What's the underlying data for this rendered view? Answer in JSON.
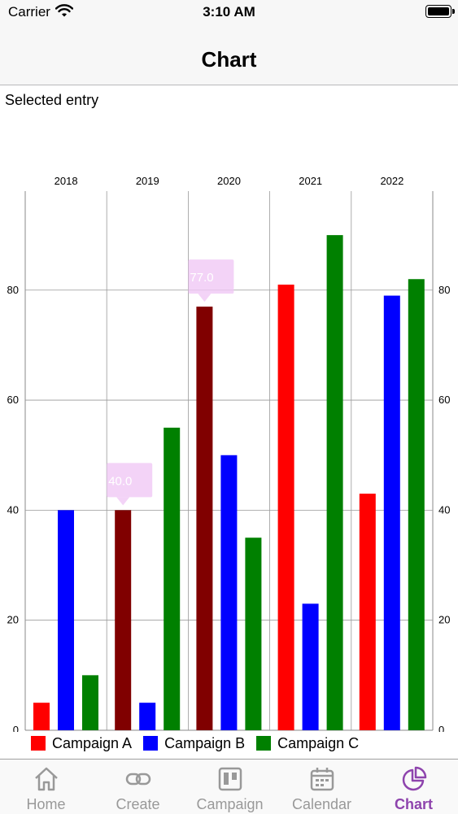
{
  "status_bar": {
    "carrier": "Carrier",
    "time": "3:10 AM"
  },
  "nav": {
    "title": "Chart"
  },
  "selected_entry_label": "Selected entry",
  "chart_data": {
    "type": "bar",
    "categories": [
      "2018",
      "2019",
      "2020",
      "2021",
      "2022"
    ],
    "series": [
      {
        "name": "Campaign A",
        "color": "#ff0000",
        "values": [
          5,
          40,
          77,
          81,
          43
        ]
      },
      {
        "name": "Campaign B",
        "color": "#0000ff",
        "values": [
          40,
          5,
          50,
          23,
          79
        ]
      },
      {
        "name": "Campaign C",
        "color": "#008000",
        "values": [
          10,
          55,
          35,
          90,
          82
        ]
      }
    ],
    "highlight_color": "#800000",
    "highlighted": [
      {
        "category": "2019",
        "series": "Campaign A",
        "label": "40.0"
      },
      {
        "category": "2020",
        "series": "Campaign A",
        "label": "77.0"
      }
    ],
    "y_ticks": [
      0,
      20,
      40,
      60,
      80
    ],
    "ylim": [
      0,
      98
    ],
    "y_axis_sides": [
      "left",
      "right"
    ],
    "x_axis_position": "top",
    "grid": true,
    "legend_position": "bottom-left"
  },
  "tabs": [
    {
      "label": "Home",
      "icon": "home-icon",
      "active": false
    },
    {
      "label": "Create",
      "icon": "link-icon",
      "active": false
    },
    {
      "label": "Campaign",
      "icon": "board-icon",
      "active": false
    },
    {
      "label": "Calendar",
      "icon": "calendar-icon",
      "active": false
    },
    {
      "label": "Chart",
      "icon": "pie-chart-icon",
      "active": true
    }
  ]
}
